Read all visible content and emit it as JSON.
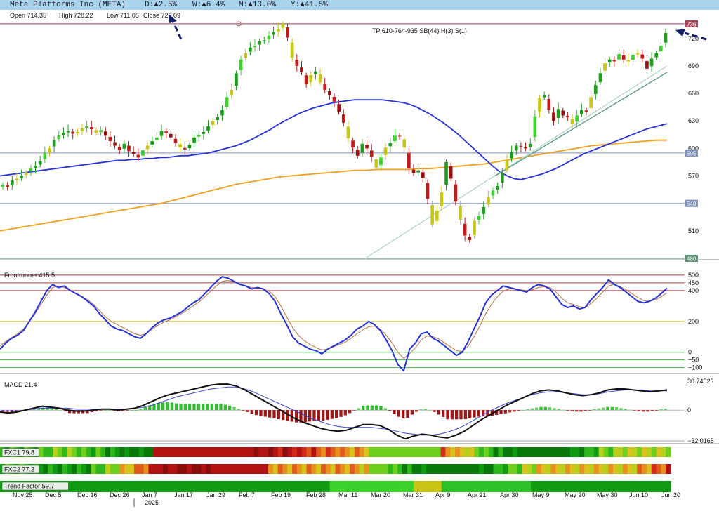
{
  "header": {
    "symbol": "Meta Platforms Inc (META)",
    "day": "D:▲2.5%",
    "week": "W:▲6.4%",
    "month": "M:▲13.0%",
    "year": "Y:▲41.5%",
    "up_color": "#2a8a2a"
  },
  "ohlc": {
    "open": "Open 714.35",
    "high": "High 728.22",
    "low": "Low 711.05",
    "close": "Close 726.09"
  },
  "annotation": "TP 610-764-935 SB(44) H(3) S(1)",
  "price_axis": {
    "ticks": [
      480,
      510,
      540,
      570,
      600,
      630,
      660,
      690,
      720
    ],
    "range": [
      480,
      739
    ],
    "boxed_labels": [
      {
        "value": 736,
        "label": "736",
        "fill": "#a4445a"
      },
      {
        "value": 595,
        "label": "595",
        "fill": "#7f8fb4"
      },
      {
        "value": 540,
        "label": "540",
        "fill": "#7f8fb4"
      },
      {
        "value": 480,
        "label": "480",
        "fill": "#5f8f75"
      }
    ],
    "hlines": [
      {
        "value": 736,
        "color": "#9a3d50"
      },
      {
        "value": 595,
        "color": "#7f8fd4"
      },
      {
        "value": 540,
        "color": "#7f8fd4"
      },
      {
        "value": 480,
        "color": "#4e8060"
      }
    ]
  },
  "frontrunner": {
    "label": "Frontrunner 415.5",
    "ticks": [
      500,
      450,
      400,
      200,
      0,
      -50,
      -100
    ],
    "tick_labels": [
      "500",
      "450",
      "400",
      "200",
      "0",
      "−50",
      "−100"
    ],
    "range": [
      -138,
      545
    ],
    "red_levels": [
      500,
      450,
      400
    ],
    "yellow_levels": [
      200
    ],
    "green_levels": [
      0,
      -50,
      -100
    ]
  },
  "macd": {
    "label": "MACD 21.4",
    "max_label": "30.74523",
    "min_label": "−32.0165",
    "zero_label": "0",
    "range": [
      -32.0165,
      30.74523
    ]
  },
  "fxc1": {
    "label": "FXC1 79.8"
  },
  "fxc2": {
    "label": "FXC2 77.2"
  },
  "trend": {
    "label": "Trend Factor 59.7"
  },
  "x_axis": {
    "labels": [
      "Nov 25",
      "Dec 5",
      "Dec 16",
      "Dec 26",
      "Jan 7",
      "Jan 17",
      "Jan 29",
      "Feb 7",
      "Feb 19",
      "Feb 28",
      "Mar 11",
      "Mar 20",
      "Mar 31",
      "Apr 9",
      "Apr 21",
      "Apr 30",
      "May 9",
      "May 20",
      "May 30",
      "Jun 10",
      "Jun 20"
    ],
    "year_label": "2025"
  },
  "chart_data": {
    "type": "candlestick",
    "symbol": "META",
    "candles_close": [
      560,
      558,
      565,
      567,
      570,
      574,
      578,
      581,
      586,
      595,
      600,
      609,
      614,
      617,
      619,
      616,
      618,
      622,
      624,
      621,
      617,
      620,
      614,
      608,
      603,
      598,
      605,
      597,
      594,
      590,
      598,
      603,
      608,
      612,
      619,
      617,
      612,
      606,
      601,
      599,
      604,
      612,
      615,
      618,
      624,
      630,
      634,
      642,
      656,
      664,
      682,
      697,
      704,
      710,
      712,
      717,
      718,
      723,
      727,
      730,
      736,
      721,
      699,
      690,
      683,
      670,
      680,
      684,
      672,
      664,
      658,
      651,
      640,
      628,
      611,
      601,
      592,
      605,
      600,
      591,
      579,
      590,
      601,
      606,
      614,
      613,
      601,
      578,
      573,
      576,
      568,
      545,
      517,
      532,
      552,
      585,
      567,
      542,
      522,
      505,
      500,
      521,
      526,
      536,
      547,
      554,
      559,
      573,
      587,
      596,
      603,
      602,
      600,
      605,
      635,
      655,
      658,
      642,
      630,
      643,
      636,
      634,
      627,
      636,
      642,
      640,
      656,
      669,
      682,
      693,
      697,
      695,
      703,
      697,
      695,
      702,
      704,
      698,
      687,
      698,
      704,
      712,
      726
    ],
    "ma_blue": [
      570,
      571,
      572,
      573,
      574,
      575,
      576,
      577,
      578,
      579,
      580,
      581,
      582,
      583,
      584,
      585,
      586,
      587,
      587,
      588,
      588,
      589,
      589,
      590,
      590,
      591,
      592,
      592,
      593,
      594,
      595,
      597,
      599,
      601,
      603,
      606,
      609,
      613,
      617,
      621,
      626,
      630,
      634,
      638,
      641,
      644,
      646,
      648,
      650,
      651,
      652,
      653,
      653,
      653,
      653,
      653,
      652,
      651,
      650,
      648,
      645,
      641,
      637,
      632,
      627,
      621,
      615,
      608,
      601,
      594,
      587,
      580,
      574,
      570,
      567,
      566,
      568,
      570,
      572,
      575,
      578,
      582,
      586,
      590,
      594,
      597,
      600,
      603,
      606,
      609,
      612,
      615,
      618,
      621,
      623,
      625,
      627
    ],
    "ma_orange": [
      510,
      512,
      514,
      516,
      518,
      520,
      522,
      524,
      526,
      528,
      530,
      532,
      534,
      536,
      538,
      540,
      543,
      546,
      549,
      552,
      555,
      558,
      561,
      563,
      565,
      567,
      569,
      570,
      571,
      572,
      573,
      574,
      575,
      576,
      576,
      577,
      577,
      577,
      577,
      578,
      578,
      579,
      580,
      581,
      582,
      583,
      585,
      587,
      589,
      591,
      593,
      595,
      597,
      599,
      601,
      603,
      604,
      605,
      606,
      607,
      608,
      609,
      609
    ],
    "trendline_1": {
      "from": {
        "x": "Mar 20",
        "y": 480
      },
      "to": {
        "x": "Jun 20",
        "y": 690
      }
    },
    "trendline_2": {
      "from": {
        "x": "Apr 30",
        "y": 570
      },
      "to": {
        "x": "Jun 20",
        "y": 683
      }
    },
    "frontrunner_main": [
      20,
      60,
      90,
      110,
      140,
      200,
      260,
      330,
      400,
      440,
      420,
      430,
      400,
      380,
      360,
      330,
      300,
      250,
      210,
      170,
      150,
      140,
      120,
      100,
      90,
      120,
      160,
      190,
      210,
      220,
      240,
      260,
      290,
      320,
      340,
      380,
      420,
      460,
      490,
      480,
      460,
      440,
      430,
      410,
      420,
      410,
      380,
      330,
      250,
      180,
      100,
      60,
      40,
      20,
      10,
      -10,
      20,
      40,
      60,
      80,
      110,
      150,
      170,
      200,
      180,
      140,
      80,
      10,
      -80,
      -120,
      20,
      60,
      120,
      130,
      90,
      70,
      40,
      10,
      -20,
      0,
      70,
      150,
      230,
      320,
      370,
      400,
      430,
      420,
      410,
      400,
      390,
      420,
      440,
      430,
      410,
      360,
      310,
      290,
      300,
      280,
      290,
      340,
      380,
      420,
      470,
      440,
      420,
      390,
      360,
      330,
      320,
      330,
      350,
      380,
      415.5
    ],
    "frontrunner_signal": [
      40,
      70,
      95,
      120,
      150,
      200,
      250,
      310,
      370,
      420,
      430,
      420,
      400,
      380,
      360,
      340,
      310,
      270,
      230,
      200,
      180,
      160,
      140,
      120,
      110,
      120,
      150,
      175,
      195,
      210,
      230,
      250,
      275,
      300,
      325,
      360,
      395,
      430,
      460,
      465,
      455,
      440,
      430,
      420,
      415,
      410,
      395,
      360,
      300,
      230,
      160,
      110,
      75,
      50,
      30,
      15,
      20,
      35,
      50,
      65,
      90,
      120,
      145,
      165,
      170,
      150,
      110,
      60,
      0,
      -40,
      -10,
      30,
      80,
      105,
      100,
      85,
      60,
      35,
      10,
      5,
      40,
      100,
      170,
      250,
      310,
      360,
      395,
      410,
      410,
      405,
      400,
      405,
      420,
      425,
      420,
      390,
      350,
      320,
      310,
      295,
      290,
      315,
      350,
      390,
      430,
      440,
      425,
      405,
      380,
      355,
      335,
      330,
      340,
      360,
      385
    ],
    "macd_line": [
      -2,
      -3,
      -2,
      0,
      2,
      4,
      3,
      2,
      0,
      -1,
      -1,
      0,
      1,
      1,
      0,
      1,
      2,
      5,
      9,
      13,
      16,
      18,
      20,
      22,
      24,
      26,
      27,
      27,
      25,
      21,
      16,
      11,
      6,
      1,
      -4,
      -9,
      -13,
      -16,
      -19,
      -21,
      -22,
      -21,
      -18,
      -15,
      -15,
      -16,
      -20,
      -26,
      -30,
      -27,
      -25,
      -26,
      -28,
      -29,
      -26,
      -22,
      -16,
      -10,
      -5,
      0,
      5,
      9,
      13,
      17,
      20,
      21,
      20,
      18,
      16,
      15,
      16,
      18,
      21,
      22,
      22,
      21,
      20,
      19,
      20,
      21
    ],
    "macd_signal": [
      -1,
      -1,
      -1,
      0,
      1,
      2,
      2,
      2,
      2,
      1,
      1,
      1,
      1,
      1,
      1,
      1,
      2,
      3,
      5,
      8,
      11,
      14,
      16,
      18,
      20,
      22,
      23,
      24,
      24,
      22,
      19,
      15,
      11,
      7,
      3,
      -1,
      -5,
      -9,
      -12,
      -15,
      -17,
      -18,
      -18,
      -18,
      -18,
      -19,
      -20,
      -22,
      -24,
      -25,
      -26,
      -26,
      -25,
      -23,
      -20,
      -16,
      -11,
      -6,
      -1,
      3,
      7,
      10,
      13,
      16,
      18,
      19,
      19,
      18,
      17,
      16,
      16,
      17,
      19,
      20,
      21,
      21,
      21,
      20,
      20,
      20
    ]
  }
}
